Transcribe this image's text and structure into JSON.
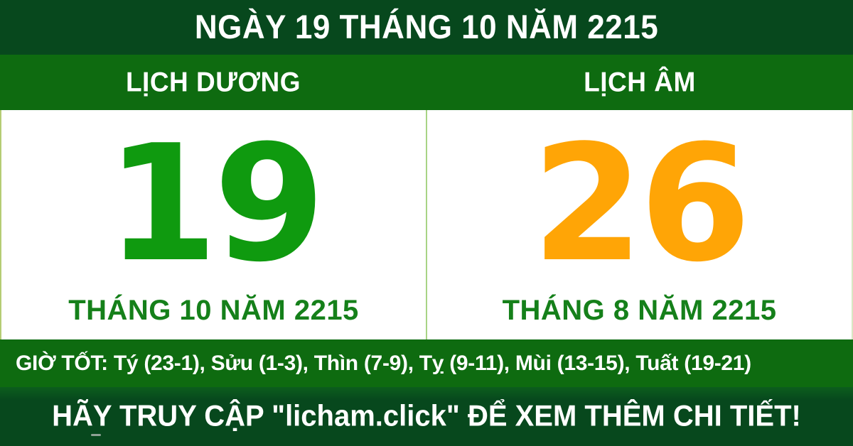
{
  "header": {
    "title": "NGÀY 19 THÁNG 10 NĂM 2215"
  },
  "calendars": {
    "solar": {
      "label": "LỊCH DƯƠNG",
      "day": "19",
      "month_year": "THÁNG 10 NĂM 2215"
    },
    "lunar": {
      "label": "LỊCH ÂM",
      "day": "26",
      "month_year": "THÁNG 8 NĂM 2215"
    }
  },
  "good_hours": {
    "text": "GIỜ TỐT: Tý (23-1), Sửu (1-3), Thìn (7-9), Tỵ (9-11), Mùi (13-15), Tuất (19-21)"
  },
  "footer": {
    "text": "HÃY TRUY CẬP \"licham.click\" ĐỂ XEM THÊM CHI TIẾT!"
  },
  "colors": {
    "dark_green": "#07481d",
    "green": "#0e6b10",
    "solar_day_green": "#0f9a0f",
    "lunar_day_orange": "#ffa506",
    "month_text_green": "#15801a",
    "divider_light_green": "#a8d485",
    "side_border_light_green": "#b5cd74",
    "text_white": "#ffffff"
  }
}
